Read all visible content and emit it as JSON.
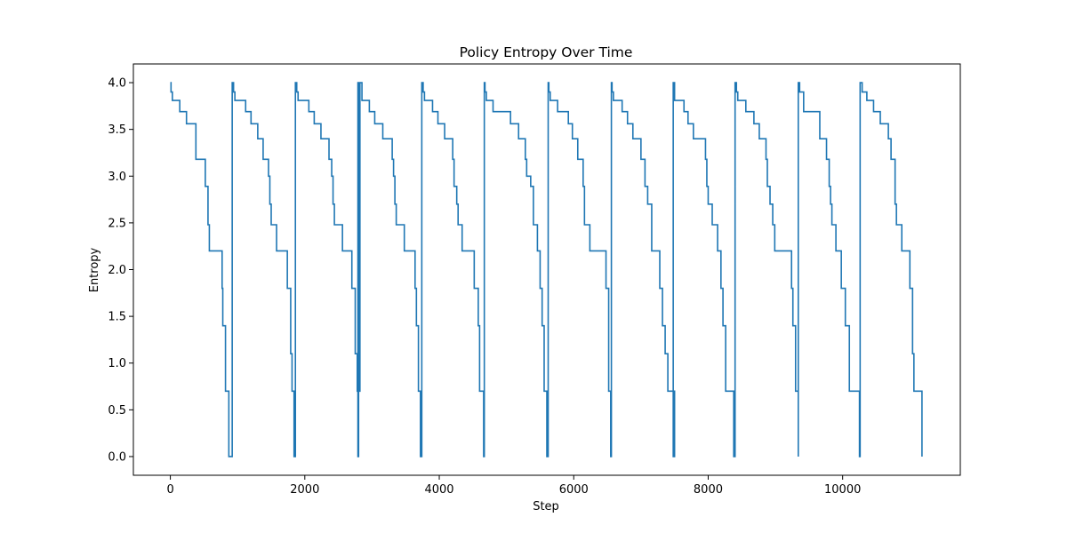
{
  "chart_data": {
    "type": "line",
    "title": "Policy Entropy Over Time",
    "xlabel": "Step",
    "ylabel": "Entropy",
    "xlim": [
      -550,
      11750
    ],
    "ylim": [
      -0.2,
      4.2
    ],
    "xticks": [
      0,
      2000,
      4000,
      6000,
      8000,
      10000
    ],
    "xtick_labels": [
      "0",
      "2000",
      "4000",
      "6000",
      "8000",
      "10000"
    ],
    "yticks": [
      0.0,
      0.5,
      1.0,
      1.5,
      2.0,
      2.5,
      3.0,
      3.5,
      4.0
    ],
    "ytick_labels": [
      "0.0",
      "0.5",
      "1.0",
      "1.5",
      "2.0",
      "2.5",
      "3.0",
      "3.5",
      "4.0"
    ],
    "grid": false,
    "legend": "none",
    "series_color": "#1f77b4",
    "step_episodes": [
      {
        "steps": [
          0,
          10,
          30,
          140,
          240,
          380,
          520,
          560,
          580,
          770,
          780,
          820,
          850,
          870,
          900,
          920
        ],
        "values": [
          4.0,
          3.9,
          3.81,
          3.69,
          3.56,
          3.18,
          2.89,
          2.48,
          2.2,
          1.8,
          1.4,
          0.7,
          0.7,
          0.0,
          0.0,
          4.0
        ]
      },
      {
        "steps": [
          940,
          960,
          1020,
          1120,
          1200,
          1300,
          1380,
          1460,
          1480,
          1500,
          1580,
          1740,
          1790,
          1810,
          1840,
          1860
        ],
        "values": [
          3.9,
          3.81,
          3.81,
          3.69,
          3.56,
          3.4,
          3.18,
          3.0,
          2.7,
          2.48,
          2.2,
          1.8,
          1.1,
          0.7,
          0.0,
          4.0
        ]
      },
      {
        "steps": [
          1880,
          1900,
          1960,
          2060,
          2140,
          2240,
          2360,
          2400,
          2420,
          2440,
          2560,
          2700,
          2750,
          2780,
          2810
        ],
        "values": [
          3.9,
          3.81,
          3.81,
          3.69,
          3.56,
          3.4,
          3.18,
          3.0,
          2.7,
          2.48,
          2.2,
          1.8,
          1.1,
          0.7,
          4.0
        ]
      },
      {
        "steps": [
          2790,
          2800,
          2820,
          2850,
          2960,
          3040,
          3160,
          3300,
          3320,
          3340,
          3360,
          3480,
          3640,
          3660,
          3690,
          3720,
          3740
        ],
        "values": [
          0.0,
          0.7,
          4.0,
          3.81,
          3.69,
          3.56,
          3.4,
          3.18,
          3.0,
          2.7,
          2.48,
          2.2,
          1.8,
          1.4,
          0.7,
          0.0,
          4.0
        ]
      },
      {
        "steps": [
          3760,
          3780,
          3900,
          3980,
          4080,
          4200,
          4220,
          4260,
          4280,
          4340,
          4520,
          4580,
          4600,
          4660,
          4670
        ],
        "values": [
          3.9,
          3.81,
          3.69,
          3.56,
          3.4,
          3.18,
          2.89,
          2.7,
          2.48,
          2.2,
          1.8,
          1.4,
          0.7,
          0.0,
          4.0
        ]
      },
      {
        "steps": [
          4680,
          4700,
          4800,
          4980,
          5060,
          5180,
          5280,
          5300,
          5360,
          5400,
          5460,
          5500,
          5530,
          5560,
          5600,
          5620
        ],
        "values": [
          3.9,
          3.81,
          3.69,
          3.69,
          3.56,
          3.4,
          3.18,
          3.0,
          2.89,
          2.48,
          2.2,
          1.8,
          1.4,
          0.7,
          0.0,
          4.0
        ]
      },
      {
        "steps": [
          5630,
          5650,
          5660,
          5760,
          5920,
          5980,
          6060,
          6140,
          6160,
          6240,
          6480,
          6520,
          6530,
          6550,
          6560
        ],
        "values": [
          3.9,
          3.81,
          3.81,
          3.69,
          3.56,
          3.4,
          3.18,
          2.89,
          2.48,
          2.2,
          1.8,
          0.7,
          0.7,
          0.0,
          4.0
        ]
      },
      {
        "steps": [
          6570,
          6590,
          6600,
          6720,
          6800,
          6880,
          7000,
          7060,
          7100,
          7160,
          7280,
          7320,
          7360,
          7400,
          7500
        ],
        "values": [
          3.9,
          3.81,
          3.81,
          3.69,
          3.56,
          3.4,
          3.18,
          2.89,
          2.7,
          2.2,
          1.8,
          1.4,
          1.1,
          0.7,
          0.0
        ]
      },
      {
        "steps": [
          7480,
          7500,
          7640,
          7700,
          7780,
          7960,
          7980,
          8000,
          8060,
          8140,
          8190,
          8220,
          8260,
          8380,
          8400
        ],
        "values": [
          4.0,
          3.81,
          3.69,
          3.56,
          3.4,
          3.18,
          2.89,
          2.7,
          2.48,
          2.2,
          1.8,
          1.4,
          0.7,
          0.0,
          4.0
        ]
      },
      {
        "steps": [
          8420,
          8440,
          8560,
          8680,
          8760,
          8860,
          8880,
          8920,
          8960,
          8990,
          9200,
          9240,
          9260,
          9300,
          9340
        ],
        "values": [
          3.9,
          3.81,
          3.69,
          3.56,
          3.4,
          3.18,
          2.89,
          2.7,
          2.48,
          2.2,
          2.2,
          1.8,
          1.4,
          0.7,
          0.0
        ]
      },
      {
        "steps": [
          9340,
          9360,
          9420,
          9580,
          9660,
          9760,
          9800,
          9820,
          9840,
          9900,
          9980,
          10040,
          10100,
          10250,
          10260
        ],
        "values": [
          4.0,
          3.9,
          3.69,
          3.69,
          3.4,
          3.18,
          2.89,
          2.7,
          2.48,
          2.2,
          1.8,
          1.4,
          0.7,
          0.0,
          4.0
        ]
      },
      {
        "steps": [
          10290,
          10360,
          10460,
          10560,
          10680,
          10720,
          10780,
          10800,
          10880,
          11000,
          11000,
          11040,
          11060,
          11180
        ],
        "values": [
          3.9,
          3.81,
          3.69,
          3.56,
          3.4,
          3.18,
          2.7,
          2.48,
          2.2,
          1.8,
          1.8,
          1.1,
          0.7,
          0.0
        ]
      }
    ]
  }
}
